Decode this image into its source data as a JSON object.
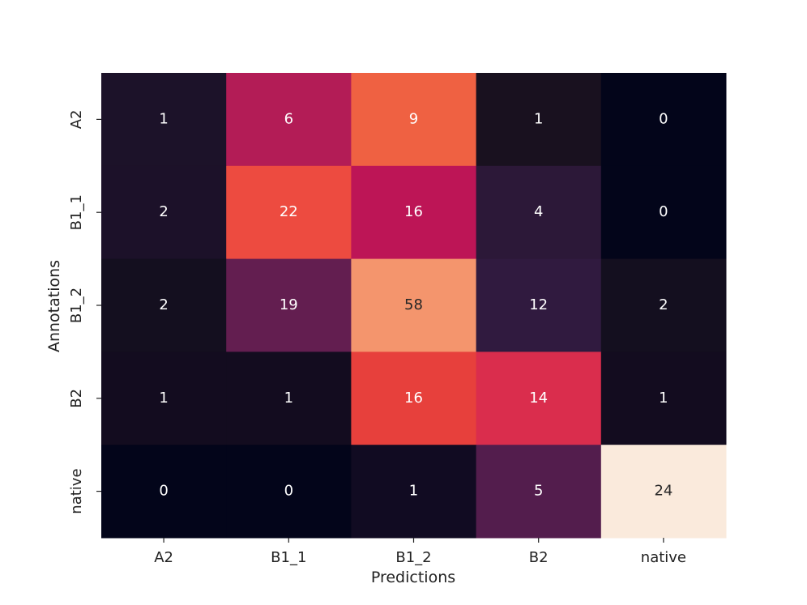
{
  "chart_data": {
    "type": "heatmap",
    "xlabel": "Predictions",
    "ylabel": "Annotations",
    "x_categories": [
      "A2",
      "B1_1",
      "B1_2",
      "B2",
      "native"
    ],
    "y_categories": [
      "A2",
      "B1_1",
      "B1_2",
      "B2",
      "native"
    ],
    "values": [
      [
        1,
        6,
        9,
        1,
        0
      ],
      [
        2,
        22,
        16,
        4,
        0
      ],
      [
        2,
        19,
        58,
        12,
        2
      ],
      [
        1,
        1,
        16,
        14,
        1
      ],
      [
        0,
        0,
        1,
        5,
        24
      ]
    ],
    "colormap": "rocket",
    "colorbar": false,
    "annotations": true,
    "cell_colors": [
      [
        "#1c1229",
        "#b31c56",
        "#ef6142",
        "#19111f",
        "#03051a"
      ],
      [
        "#1c1129",
        "#ed4b40",
        "#bd1556",
        "#2c1838",
        "#03051a"
      ],
      [
        "#140f1f",
        "#631e50",
        "#f4956d",
        "#301a3f",
        "#140f1f"
      ],
      [
        "#130c1f",
        "#130c1f",
        "#e7403c",
        "#da2d4d",
        "#130c1f"
      ],
      [
        "#03051a",
        "#03051a",
        "#110b22",
        "#531d4d",
        "#faeadc"
      ]
    ]
  }
}
